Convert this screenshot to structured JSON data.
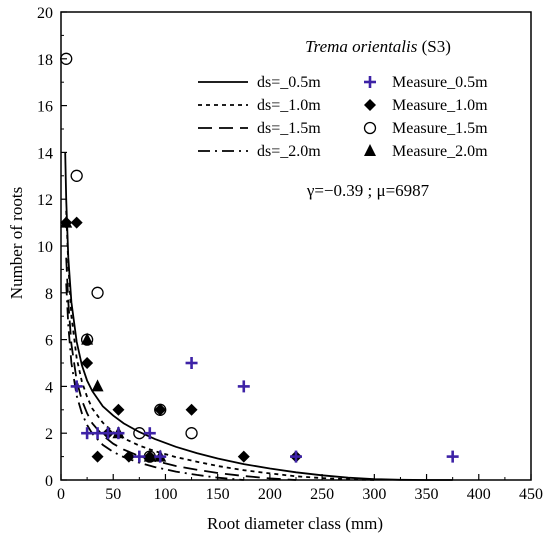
{
  "chart_data": {
    "type": "scatter",
    "title_italic": "Trema orientalis",
    "title_suffix": " (S3)",
    "xlabel": "Root diameter class (mm)",
    "ylabel": "Number of roots",
    "xlim": [
      0,
      450
    ],
    "ylim": [
      0,
      20
    ],
    "x_ticks": [
      0,
      50,
      100,
      150,
      200,
      250,
      300,
      350,
      400,
      450
    ],
    "y_ticks": [
      0,
      2,
      4,
      6,
      8,
      10,
      12,
      14,
      16,
      18,
      20
    ],
    "annotation": "γ=−0.39 ; μ=6987",
    "legend_position": "top-right",
    "grid": false,
    "colors": {
      "curve": "#000000",
      "measure_0_5": "#3d22a6",
      "marker": "#000000"
    },
    "curves": [
      {
        "name": "ds=_0.5m",
        "dash": "solid",
        "x": [
          4,
          5,
          7,
          10,
          15,
          20,
          25,
          30,
          40,
          50,
          60,
          75,
          90,
          110,
          130,
          150,
          175,
          200,
          225,
          250,
          275,
          300,
          325,
          350,
          375
        ],
        "y": [
          14.0,
          12.0,
          9.5,
          7.6,
          5.9,
          4.9,
          4.25,
          3.8,
          3.15,
          2.75,
          2.42,
          2.05,
          1.75,
          1.42,
          1.15,
          0.92,
          0.68,
          0.49,
          0.33,
          0.2,
          0.1,
          0.04,
          0.01,
          0.0,
          0.0
        ]
      },
      {
        "name": "ds=_1.0m",
        "dash": "short",
        "x": [
          5,
          7,
          10,
          15,
          20,
          25,
          30,
          40,
          50,
          60,
          75,
          90,
          110,
          130,
          150,
          175,
          200,
          225,
          250,
          275,
          300
        ],
        "y": [
          11.5,
          9.2,
          7.0,
          5.2,
          4.2,
          3.55,
          3.05,
          2.45,
          2.05,
          1.78,
          1.47,
          1.23,
          0.98,
          0.78,
          0.6,
          0.42,
          0.28,
          0.16,
          0.08,
          0.03,
          0.0
        ]
      },
      {
        "name": "ds=_1.5m",
        "dash": "long",
        "x": [
          5,
          7,
          10,
          15,
          20,
          25,
          30,
          40,
          50,
          60,
          75,
          90,
          110,
          130,
          150,
          175,
          200,
          225
        ],
        "y": [
          9.5,
          7.6,
          5.8,
          4.25,
          3.4,
          2.85,
          2.42,
          1.9,
          1.55,
          1.3,
          1.02,
          0.82,
          0.6,
          0.44,
          0.3,
          0.17,
          0.07,
          0.0
        ]
      },
      {
        "name": "ds=_2.0m",
        "dash": "dashdot",
        "x": [
          5,
          7,
          10,
          15,
          20,
          25,
          30,
          40,
          50,
          60,
          75,
          90,
          110,
          130,
          150,
          175
        ],
        "y": [
          8.4,
          6.6,
          5.0,
          3.6,
          2.85,
          2.35,
          1.98,
          1.5,
          1.2,
          0.98,
          0.74,
          0.55,
          0.36,
          0.22,
          0.1,
          0.0
        ]
      }
    ],
    "series": [
      {
        "name": "Measure_0.5m",
        "marker": "plus",
        "x": [
          15,
          25,
          35,
          45,
          55,
          75,
          85,
          95,
          125,
          175,
          225,
          375
        ],
        "y": [
          4,
          2,
          2,
          2,
          2,
          1,
          2,
          1,
          5,
          4,
          1,
          1
        ]
      },
      {
        "name": "Measure_1.0m",
        "marker": "diamond",
        "x": [
          5,
          15,
          25,
          35,
          45,
          55,
          65,
          85,
          95,
          125,
          175,
          225
        ],
        "y": [
          11,
          11,
          5,
          1,
          2,
          3,
          1,
          1,
          3,
          3,
          1,
          1
        ]
      },
      {
        "name": "Measure_1.5m",
        "marker": "circle",
        "x": [
          5,
          15,
          25,
          35,
          75,
          85,
          95,
          125
        ],
        "y": [
          18,
          13,
          6,
          8,
          2,
          1,
          3,
          2
        ]
      },
      {
        "name": "Measure_2.0m",
        "marker": "triangle",
        "x": [
          5,
          25,
          35,
          55,
          85,
          95
        ],
        "y": [
          11,
          6,
          4,
          2,
          1,
          1
        ]
      }
    ]
  }
}
